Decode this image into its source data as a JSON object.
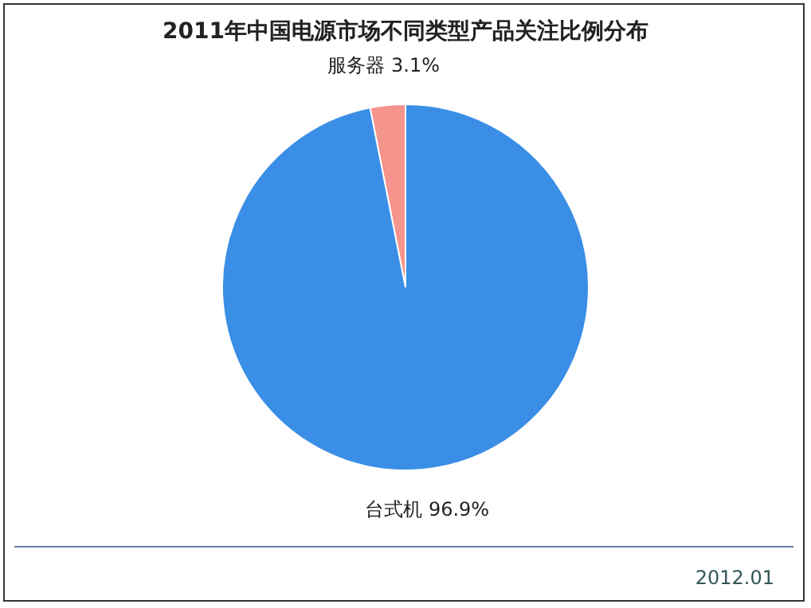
{
  "chart_data": {
    "type": "pie",
    "title": "2011年中国电源市场不同类型产品关注比例分布",
    "categories": [
      "服务器",
      "台式机"
    ],
    "values": [
      3.1,
      96.9
    ],
    "colors": [
      "#f4948c",
      "#3a8ee6"
    ],
    "value_labels": [
      "3.1%",
      "96.9%"
    ],
    "legend": false,
    "annotations": [
      "2012.01"
    ]
  }
}
